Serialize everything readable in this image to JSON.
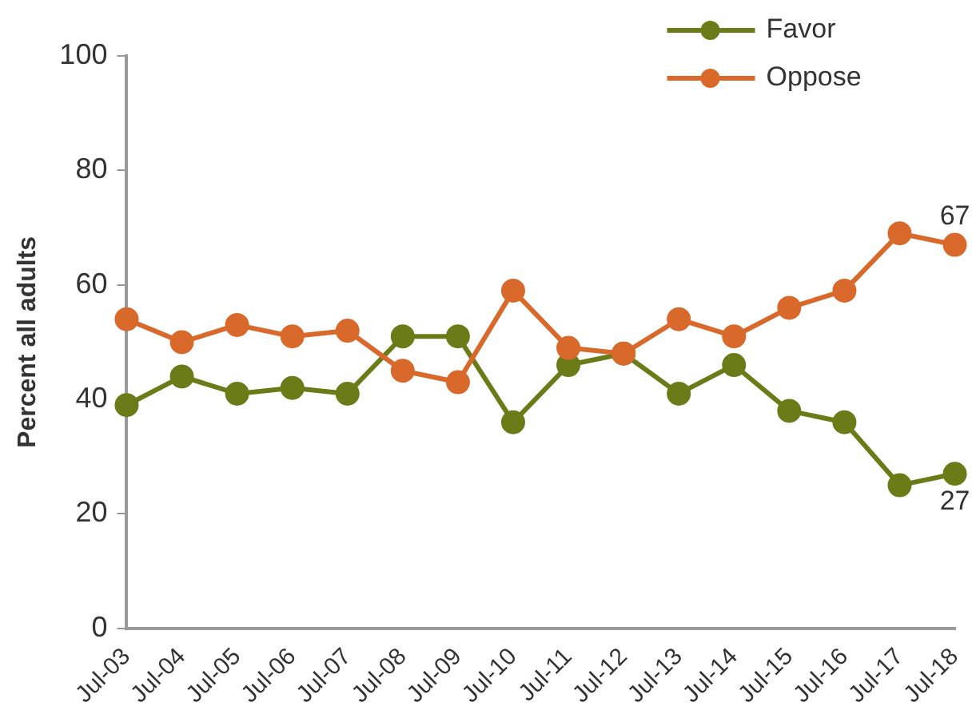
{
  "chart_data": {
    "type": "line",
    "ylabel": "Percent all adults",
    "categories": [
      "Jul-03",
      "Jul-04",
      "Jul-05",
      "Jul-06",
      "Jul-07",
      "Jul-08",
      "Jul-09",
      "Jul-10",
      "Jul-11",
      "Jul-12",
      "Jul-13",
      "Jul-14",
      "Jul-15",
      "Jul-16",
      "Jul-17",
      "Jul-18"
    ],
    "series": [
      {
        "name": "Favor",
        "color": "#6b7b17",
        "values": [
          39,
          44,
          41,
          42,
          41,
          51,
          51,
          36,
          46,
          48,
          41,
          46,
          38,
          36,
          25,
          27
        ],
        "value_labels": [
          null,
          null,
          null,
          null,
          null,
          null,
          null,
          null,
          null,
          null,
          null,
          null,
          null,
          null,
          null,
          "27"
        ]
      },
      {
        "name": "Oppose",
        "color": "#d9692b",
        "values": [
          54,
          50,
          53,
          51,
          52,
          45,
          43,
          59,
          49,
          48,
          54,
          51,
          56,
          59,
          69,
          67
        ],
        "value_labels": [
          null,
          null,
          null,
          null,
          null,
          null,
          null,
          null,
          null,
          null,
          null,
          null,
          null,
          null,
          null,
          "67"
        ]
      }
    ],
    "ylim": [
      0,
      100
    ],
    "yticks": [
      0,
      20,
      40,
      60,
      80,
      100
    ],
    "grid": false,
    "legend": "top right",
    "marker": "circle",
    "line_style": "solid"
  }
}
